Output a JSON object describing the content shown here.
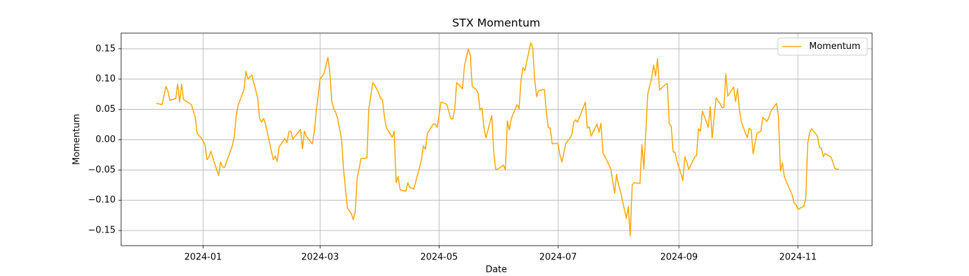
{
  "chart_data": {
    "type": "line",
    "title": "STX Momentum",
    "x_label": "Date",
    "y_label": "Momentum",
    "xlim": [
      "2023-11-20",
      "2024-12-09"
    ],
    "ylim": [
      -0.175,
      0.176
    ],
    "xticks": [
      {
        "value": "2024-01-01",
        "label": "2024-01"
      },
      {
        "value": "2024-03-01",
        "label": "2024-03"
      },
      {
        "value": "2024-05-01",
        "label": "2024-05"
      },
      {
        "value": "2024-07-01",
        "label": "2024-07"
      },
      {
        "value": "2024-09-01",
        "label": "2024-09"
      },
      {
        "value": "2024-11-01",
        "label": "2024-11"
      }
    ],
    "yticks": [
      {
        "value": -0.15,
        "label": "−0.15"
      },
      {
        "value": -0.1,
        "label": "−0.10"
      },
      {
        "value": -0.05,
        "label": "−0.05"
      },
      {
        "value": 0,
        "label": "0.00"
      },
      0.05,
      {
        "value": 0.1,
        "label": "0.10"
      },
      0.15
    ],
    "grid": true,
    "legend": "upper right",
    "x": [
      "2023-12-08",
      "2023-12-11",
      "2023-12-13",
      "2023-12-14",
      "2023-12-15",
      "2023-12-18",
      "2023-12-19",
      "2023-12-20",
      "2023-12-21",
      "2023-12-22",
      "2023-12-26",
      "2023-12-28",
      "2023-12-29",
      "2023-12-31",
      "2024-01-02",
      "2024-01-03",
      "2024-01-04",
      "2024-01-05",
      "2024-01-07",
      "2024-01-09",
      "2024-01-10",
      "2024-01-11",
      "2024-01-12",
      "2024-01-16",
      "2024-01-17",
      "2024-01-18",
      "2024-01-19",
      "2024-01-22",
      "2024-01-23",
      "2024-01-24",
      "2024-01-26",
      "2024-01-29",
      "2024-01-30",
      "2024-01-31",
      "2024-02-01",
      "2024-02-02",
      "2024-02-06",
      "2024-02-07",
      "2024-02-08",
      "2024-02-09",
      "2024-02-12",
      "2024-02-13",
      "2024-02-14",
      "2024-02-15",
      "2024-02-16",
      "2024-02-20",
      "2024-02-21",
      "2024-02-22",
      "2024-02-23",
      "2024-02-26",
      "2024-02-27",
      "2024-02-28",
      "2024-02-29",
      "2024-03-01",
      "2024-03-03",
      "2024-03-05",
      "2024-03-06",
      "2024-03-07",
      "2024-03-08",
      "2024-03-09",
      "2024-03-10",
      "2024-03-12",
      "2024-03-13",
      "2024-03-15",
      "2024-03-17",
      "2024-03-18",
      "2024-03-19",
      "2024-03-20",
      "2024-03-21",
      "2024-03-22",
      "2024-03-24",
      "2024-03-25",
      "2024-03-26",
      "2024-03-28",
      "2024-03-29",
      "2024-03-31",
      "2024-04-01",
      "2024-04-02",
      "2024-04-03",
      "2024-04-04",
      "2024-04-07",
      "2024-04-08",
      "2024-04-09",
      "2024-04-10",
      "2024-04-11",
      "2024-04-12",
      "2024-04-14",
      "2024-04-15",
      "2024-04-16",
      "2024-04-17",
      "2024-04-18",
      "2024-04-22",
      "2024-04-23",
      "2024-04-24",
      "2024-04-25",
      "2024-04-28",
      "2024-04-29",
      "2024-04-30",
      "2024-05-02",
      "2024-05-04",
      "2024-05-05",
      "2024-05-07",
      "2024-05-08",
      "2024-05-09",
      "2024-05-10",
      "2024-05-12",
      "2024-05-13",
      "2024-05-14",
      "2024-05-16",
      "2024-05-17",
      "2024-05-18",
      "2024-05-20",
      "2024-05-21",
      "2024-05-22",
      "2024-05-23",
      "2024-05-24",
      "2024-05-25",
      "2024-05-28",
      "2024-05-29",
      "2024-05-30",
      "2024-05-31",
      "2024-06-03",
      "2024-06-04",
      "2024-06-05",
      "2024-06-06",
      "2024-06-07",
      "2024-06-10",
      "2024-06-11",
      "2024-06-12",
      "2024-06-13",
      "2024-06-14",
      "2024-06-15",
      "2024-06-17",
      "2024-06-18",
      "2024-06-19",
      "2024-06-20",
      "2024-06-21",
      "2024-06-24",
      "2024-06-25",
      "2024-06-26",
      "2024-06-27",
      "2024-06-28",
      "2024-06-30",
      "2024-07-01",
      "2024-07-02",
      "2024-07-03",
      "2024-07-05",
      "2024-07-07",
      "2024-07-08",
      "2024-07-09",
      "2024-07-10",
      "2024-07-11",
      "2024-07-15",
      "2024-07-16",
      "2024-07-17",
      "2024-07-18",
      "2024-07-21",
      "2024-07-22",
      "2024-07-23",
      "2024-07-24",
      "2024-07-26",
      "2024-07-28",
      "2024-07-30",
      "2024-07-31",
      "2024-08-01",
      "2024-08-02",
      "2024-08-05",
      "2024-08-06",
      "2024-08-07",
      "2024-08-08",
      "2024-08-09",
      "2024-08-11",
      "2024-08-12",
      "2024-08-13",
      "2024-08-14",
      "2024-08-16",
      "2024-08-18",
      "2024-08-19",
      "2024-08-20",
      "2024-08-21",
      "2024-08-22",
      "2024-08-25",
      "2024-08-26",
      "2024-08-27",
      "2024-08-28",
      "2024-08-29",
      "2024-08-30",
      "2024-08-31",
      "2024-09-02",
      "2024-09-03",
      "2024-09-04",
      "2024-09-05",
      "2024-09-06",
      "2024-09-09",
      "2024-09-10",
      "2024-09-11",
      "2024-09-12",
      "2024-09-13",
      "2024-09-15",
      "2024-09-16",
      "2024-09-17",
      "2024-09-18",
      "2024-09-20",
      "2024-09-22",
      "2024-09-23",
      "2024-09-24",
      "2024-09-25",
      "2024-09-26",
      "2024-09-29",
      "2024-09-30",
      "2024-10-01",
      "2024-10-02",
      "2024-10-03",
      "2024-10-06",
      "2024-10-07",
      "2024-10-08",
      "2024-10-09",
      "2024-10-11",
      "2024-10-13",
      "2024-10-14",
      "2024-10-16",
      "2024-10-17",
      "2024-10-18",
      "2024-10-19",
      "2024-10-21",
      "2024-10-22",
      "2024-10-23",
      "2024-10-24",
      "2024-10-25",
      "2024-10-28",
      "2024-10-29",
      "2024-10-30",
      "2024-10-31",
      "2024-11-01",
      "2024-11-04",
      "2024-11-05",
      "2024-11-06",
      "2024-11-07",
      "2024-11-08",
      "2024-11-11",
      "2024-11-12",
      "2024-11-13",
      "2024-11-14",
      "2024-11-15",
      "2024-11-18",
      "2024-11-20",
      "2024-11-22"
    ],
    "series": [
      {
        "name": "Momentum",
        "color": "#ffa500",
        "values": [
          0.06,
          0.058,
          0.088,
          0.08,
          0.065,
          0.068,
          0.092,
          0.062,
          0.092,
          0.066,
          0.058,
          0.037,
          0.01,
          0.003,
          -0.008,
          -0.033,
          -0.029,
          -0.019,
          -0.04,
          -0.059,
          -0.037,
          -0.045,
          -0.046,
          -0.01,
          0.005,
          0.04,
          0.057,
          0.083,
          0.113,
          0.1,
          0.107,
          0.069,
          0.035,
          0.029,
          0.035,
          0.026,
          -0.033,
          -0.027,
          -0.036,
          -0.012,
          0.002,
          -0.005,
          0.013,
          0.014,
          0.001,
          0.017,
          -0.015,
          0.014,
          0.005,
          -0.007,
          0.012,
          0.046,
          0.072,
          0.1,
          0.109,
          0.136,
          0.11,
          0.063,
          0.051,
          0.045,
          0.035,
          0.001,
          -0.048,
          -0.113,
          -0.122,
          -0.132,
          -0.12,
          -0.064,
          -0.048,
          -0.031,
          -0.031,
          -0.03,
          0.051,
          0.094,
          0.09,
          0.078,
          0.068,
          0.066,
          0.037,
          0.02,
          0.004,
          0.014,
          -0.071,
          -0.061,
          -0.082,
          -0.084,
          -0.085,
          -0.071,
          -0.079,
          -0.08,
          -0.082,
          -0.033,
          -0.01,
          -0.016,
          0.01,
          0.026,
          0.026,
          0.02,
          0.062,
          0.06,
          0.058,
          0.035,
          0.034,
          0.049,
          0.094,
          0.088,
          0.084,
          0.122,
          0.15,
          0.14,
          0.088,
          0.083,
          0.077,
          0.049,
          0.052,
          0.02,
          0.003,
          0.04,
          -0.018,
          -0.049,
          -0.049,
          -0.042,
          -0.05,
          0.031,
          0.016,
          0.035,
          0.058,
          0.051,
          0.097,
          0.119,
          0.114,
          0.13,
          0.16,
          0.152,
          0.1,
          0.071,
          0.081,
          0.083,
          0.045,
          0.02,
          0.019,
          -0.007,
          -0.006,
          -0.007,
          -0.026,
          -0.037,
          -0.006,
          0.002,
          0.008,
          0.028,
          0.033,
          0.029,
          0.062,
          0.019,
          0.021,
          0.006,
          0.026,
          0.012,
          0.027,
          -0.022,
          -0.034,
          -0.048,
          -0.088,
          -0.057,
          -0.075,
          -0.085,
          -0.13,
          -0.11,
          -0.159,
          -0.075,
          -0.071,
          -0.072,
          -0.072,
          -0.008,
          -0.048,
          0.076,
          0.102,
          0.123,
          0.105,
          0.134,
          0.082,
          0.091,
          0.093,
          0.026,
          0.023,
          -0.02,
          -0.021,
          -0.036,
          -0.056,
          -0.068,
          -0.028,
          -0.037,
          -0.049,
          -0.029,
          -0.026,
          0.018,
          0.014,
          0.047,
          0.03,
          0.02,
          0.054,
          0.003,
          0.069,
          0.06,
          0.053,
          0.053,
          0.109,
          0.072,
          0.087,
          0.063,
          0.084,
          0.049,
          0.029,
          0.003,
          0.019,
          0.016,
          -0.023,
          0.011,
          0.014,
          0.037,
          0.03,
          0.036,
          0.046,
          0.051,
          0.06,
          0.038,
          -0.052,
          -0.038,
          -0.061,
          -0.084,
          -0.091,
          -0.105,
          -0.107,
          -0.115,
          -0.11,
          -0.097,
          -0.006,
          0.012,
          0.018,
          0.006,
          -0.013,
          -0.014,
          -0.028,
          -0.023,
          -0.029,
          -0.048,
          -0.049
        ]
      }
    ]
  }
}
